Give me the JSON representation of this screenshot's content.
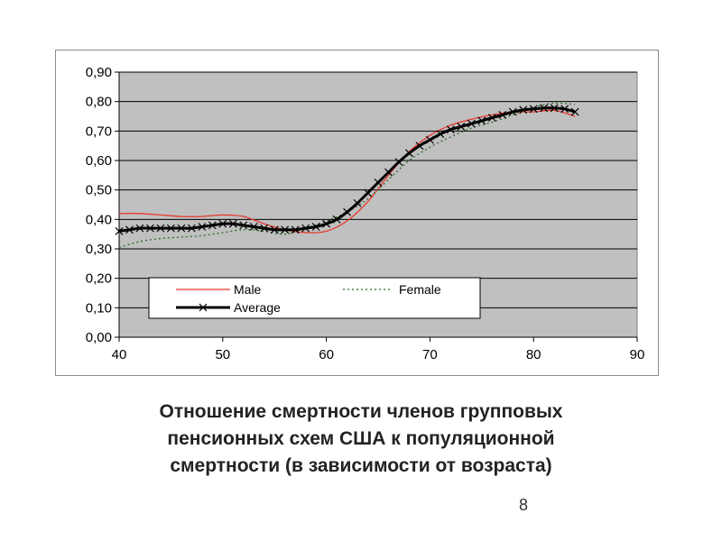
{
  "caption": {
    "line1": "Отношение смертности членов групповых",
    "line2": "пенсионных схем  США к популяционной",
    "line3": "смертности (в зависимости от возраста)"
  },
  "page_number": "8",
  "colors": {
    "plot_bg": "#c0c0c0",
    "male": "#e8382e",
    "female": "#2f6b2a",
    "average": "#000000",
    "grid": "#000000"
  },
  "chart_data": {
    "type": "line",
    "title": "",
    "xlabel": "",
    "ylabel": "",
    "xlim": [
      40,
      90
    ],
    "ylim": [
      0,
      0.9
    ],
    "x_ticks": [
      40,
      50,
      60,
      70,
      80,
      90
    ],
    "x_tick_labels": [
      "40",
      "50",
      "60",
      "70",
      "80",
      "90"
    ],
    "y_ticks": [
      0,
      0.1,
      0.2,
      0.3,
      0.4,
      0.5,
      0.6,
      0.7,
      0.8,
      0.9
    ],
    "y_tick_labels": [
      "0,00",
      "0,10",
      "0,20",
      "0,30",
      "0,40",
      "0,50",
      "0,60",
      "0,70",
      "0,80",
      "0,90"
    ],
    "grid": "horizontal",
    "legend": "inside-lower",
    "series": [
      {
        "name": "Male",
        "key": "male",
        "style": "solid-thin",
        "x": [
          40,
          42,
          44,
          46,
          48,
          50,
          52,
          54,
          56,
          58,
          60,
          62,
          64,
          66,
          68,
          70,
          72,
          74,
          76,
          78,
          80,
          82,
          84
        ],
        "y": [
          0.42,
          0.42,
          0.415,
          0.41,
          0.41,
          0.415,
          0.41,
          0.385,
          0.365,
          0.355,
          0.36,
          0.395,
          0.46,
          0.55,
          0.63,
          0.685,
          0.72,
          0.74,
          0.755,
          0.765,
          0.765,
          0.77,
          0.75
        ]
      },
      {
        "name": "Female",
        "key": "female",
        "style": "dotted",
        "x": [
          40,
          42,
          44,
          46,
          48,
          50,
          52,
          54,
          56,
          58,
          60,
          62,
          64,
          66,
          68,
          70,
          72,
          74,
          76,
          78,
          80,
          82,
          84
        ],
        "y": [
          0.305,
          0.325,
          0.335,
          0.34,
          0.345,
          0.355,
          0.365,
          0.36,
          0.35,
          0.37,
          0.395,
          0.425,
          0.47,
          0.535,
          0.6,
          0.645,
          0.68,
          0.71,
          0.73,
          0.755,
          0.78,
          0.795,
          0.79
        ]
      },
      {
        "name": "Average",
        "key": "average",
        "style": "thick-x-markers",
        "x": [
          40,
          41,
          42,
          43,
          44,
          45,
          46,
          47,
          48,
          49,
          50,
          51,
          52,
          53,
          54,
          55,
          56,
          57,
          58,
          59,
          60,
          61,
          62,
          63,
          64,
          65,
          66,
          67,
          68,
          69,
          70,
          71,
          72,
          73,
          74,
          75,
          76,
          77,
          78,
          79,
          80,
          81,
          82,
          83,
          84
        ],
        "y": [
          0.36,
          0.365,
          0.37,
          0.37,
          0.37,
          0.37,
          0.37,
          0.37,
          0.375,
          0.38,
          0.385,
          0.385,
          0.38,
          0.375,
          0.37,
          0.365,
          0.365,
          0.365,
          0.37,
          0.375,
          0.385,
          0.4,
          0.425,
          0.455,
          0.49,
          0.525,
          0.56,
          0.595,
          0.625,
          0.65,
          0.67,
          0.69,
          0.705,
          0.715,
          0.725,
          0.735,
          0.745,
          0.755,
          0.765,
          0.772,
          0.775,
          0.778,
          0.778,
          0.775,
          0.765
        ]
      }
    ]
  }
}
